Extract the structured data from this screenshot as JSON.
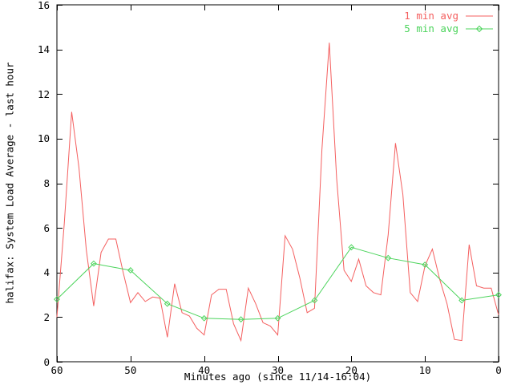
{
  "window": {
    "background": "#ffffff",
    "axis_color": "#000000"
  },
  "chart_data": {
    "type": "line",
    "title": "",
    "xlabel": "Minutes ago (since 11/14-16:04)",
    "ylabel": "halifax: System Load Average - last hour",
    "xlim": [
      60,
      0
    ],
    "ylim": [
      0,
      16
    ],
    "xticks": [
      "60",
      "50",
      "40",
      "30",
      "20",
      "10",
      "0"
    ],
    "xtick_values": [
      60,
      50,
      40,
      30,
      20,
      10,
      0
    ],
    "yticks": [
      "0",
      "2",
      "4",
      "6",
      "8",
      "10",
      "12",
      "14",
      "16"
    ],
    "ytick_values": [
      0,
      2,
      4,
      6,
      8,
      10,
      12,
      14,
      16
    ],
    "grid": false,
    "legend_position": "top-right-inside",
    "series": [
      {
        "name": "1 min avg",
        "color": "#f45f5f",
        "marker": "none",
        "x": [
          60,
          59,
          58,
          57,
          56,
          55,
          54,
          53,
          52,
          51,
          50,
          49,
          48,
          47,
          46,
          45,
          44,
          43,
          42,
          41,
          40,
          39,
          38,
          37,
          36,
          35,
          34,
          33,
          32,
          31,
          30,
          29,
          28,
          27,
          26,
          25,
          24,
          23,
          22,
          21,
          20,
          19,
          18,
          17,
          16,
          15,
          14,
          13,
          12,
          11,
          10,
          9,
          8,
          7,
          6,
          5,
          4,
          3,
          2,
          1,
          0
        ],
        "values": [
          2.0,
          6.2,
          11.2,
          8.7,
          5.0,
          2.5,
          4.9,
          5.5,
          5.5,
          4.0,
          2.65,
          3.1,
          2.7,
          2.9,
          2.85,
          1.1,
          3.5,
          2.2,
          2.05,
          1.5,
          1.2,
          3.0,
          3.25,
          3.25,
          1.7,
          0.95,
          3.3,
          2.6,
          1.75,
          1.6,
          1.2,
          5.65,
          5.05,
          3.75,
          2.2,
          2.4,
          9.5,
          14.3,
          8.2,
          4.1,
          3.6,
          4.6,
          3.4,
          3.1,
          3.0,
          5.7,
          9.8,
          7.5,
          3.1,
          2.7,
          4.3,
          5.05,
          3.7,
          2.6,
          1.0,
          0.95,
          5.25,
          3.4,
          3.3,
          3.3,
          2.1
        ]
      },
      {
        "name": "5 min avg",
        "color": "#4cd45c",
        "marker": "diamond",
        "x": [
          60,
          55,
          50,
          45,
          40,
          35,
          30,
          25,
          20,
          15,
          10,
          5,
          0
        ],
        "values": [
          2.8,
          4.4,
          4.1,
          2.6,
          1.95,
          1.9,
          1.95,
          2.75,
          5.13,
          4.65,
          4.35,
          2.75,
          3.0
        ]
      }
    ]
  }
}
